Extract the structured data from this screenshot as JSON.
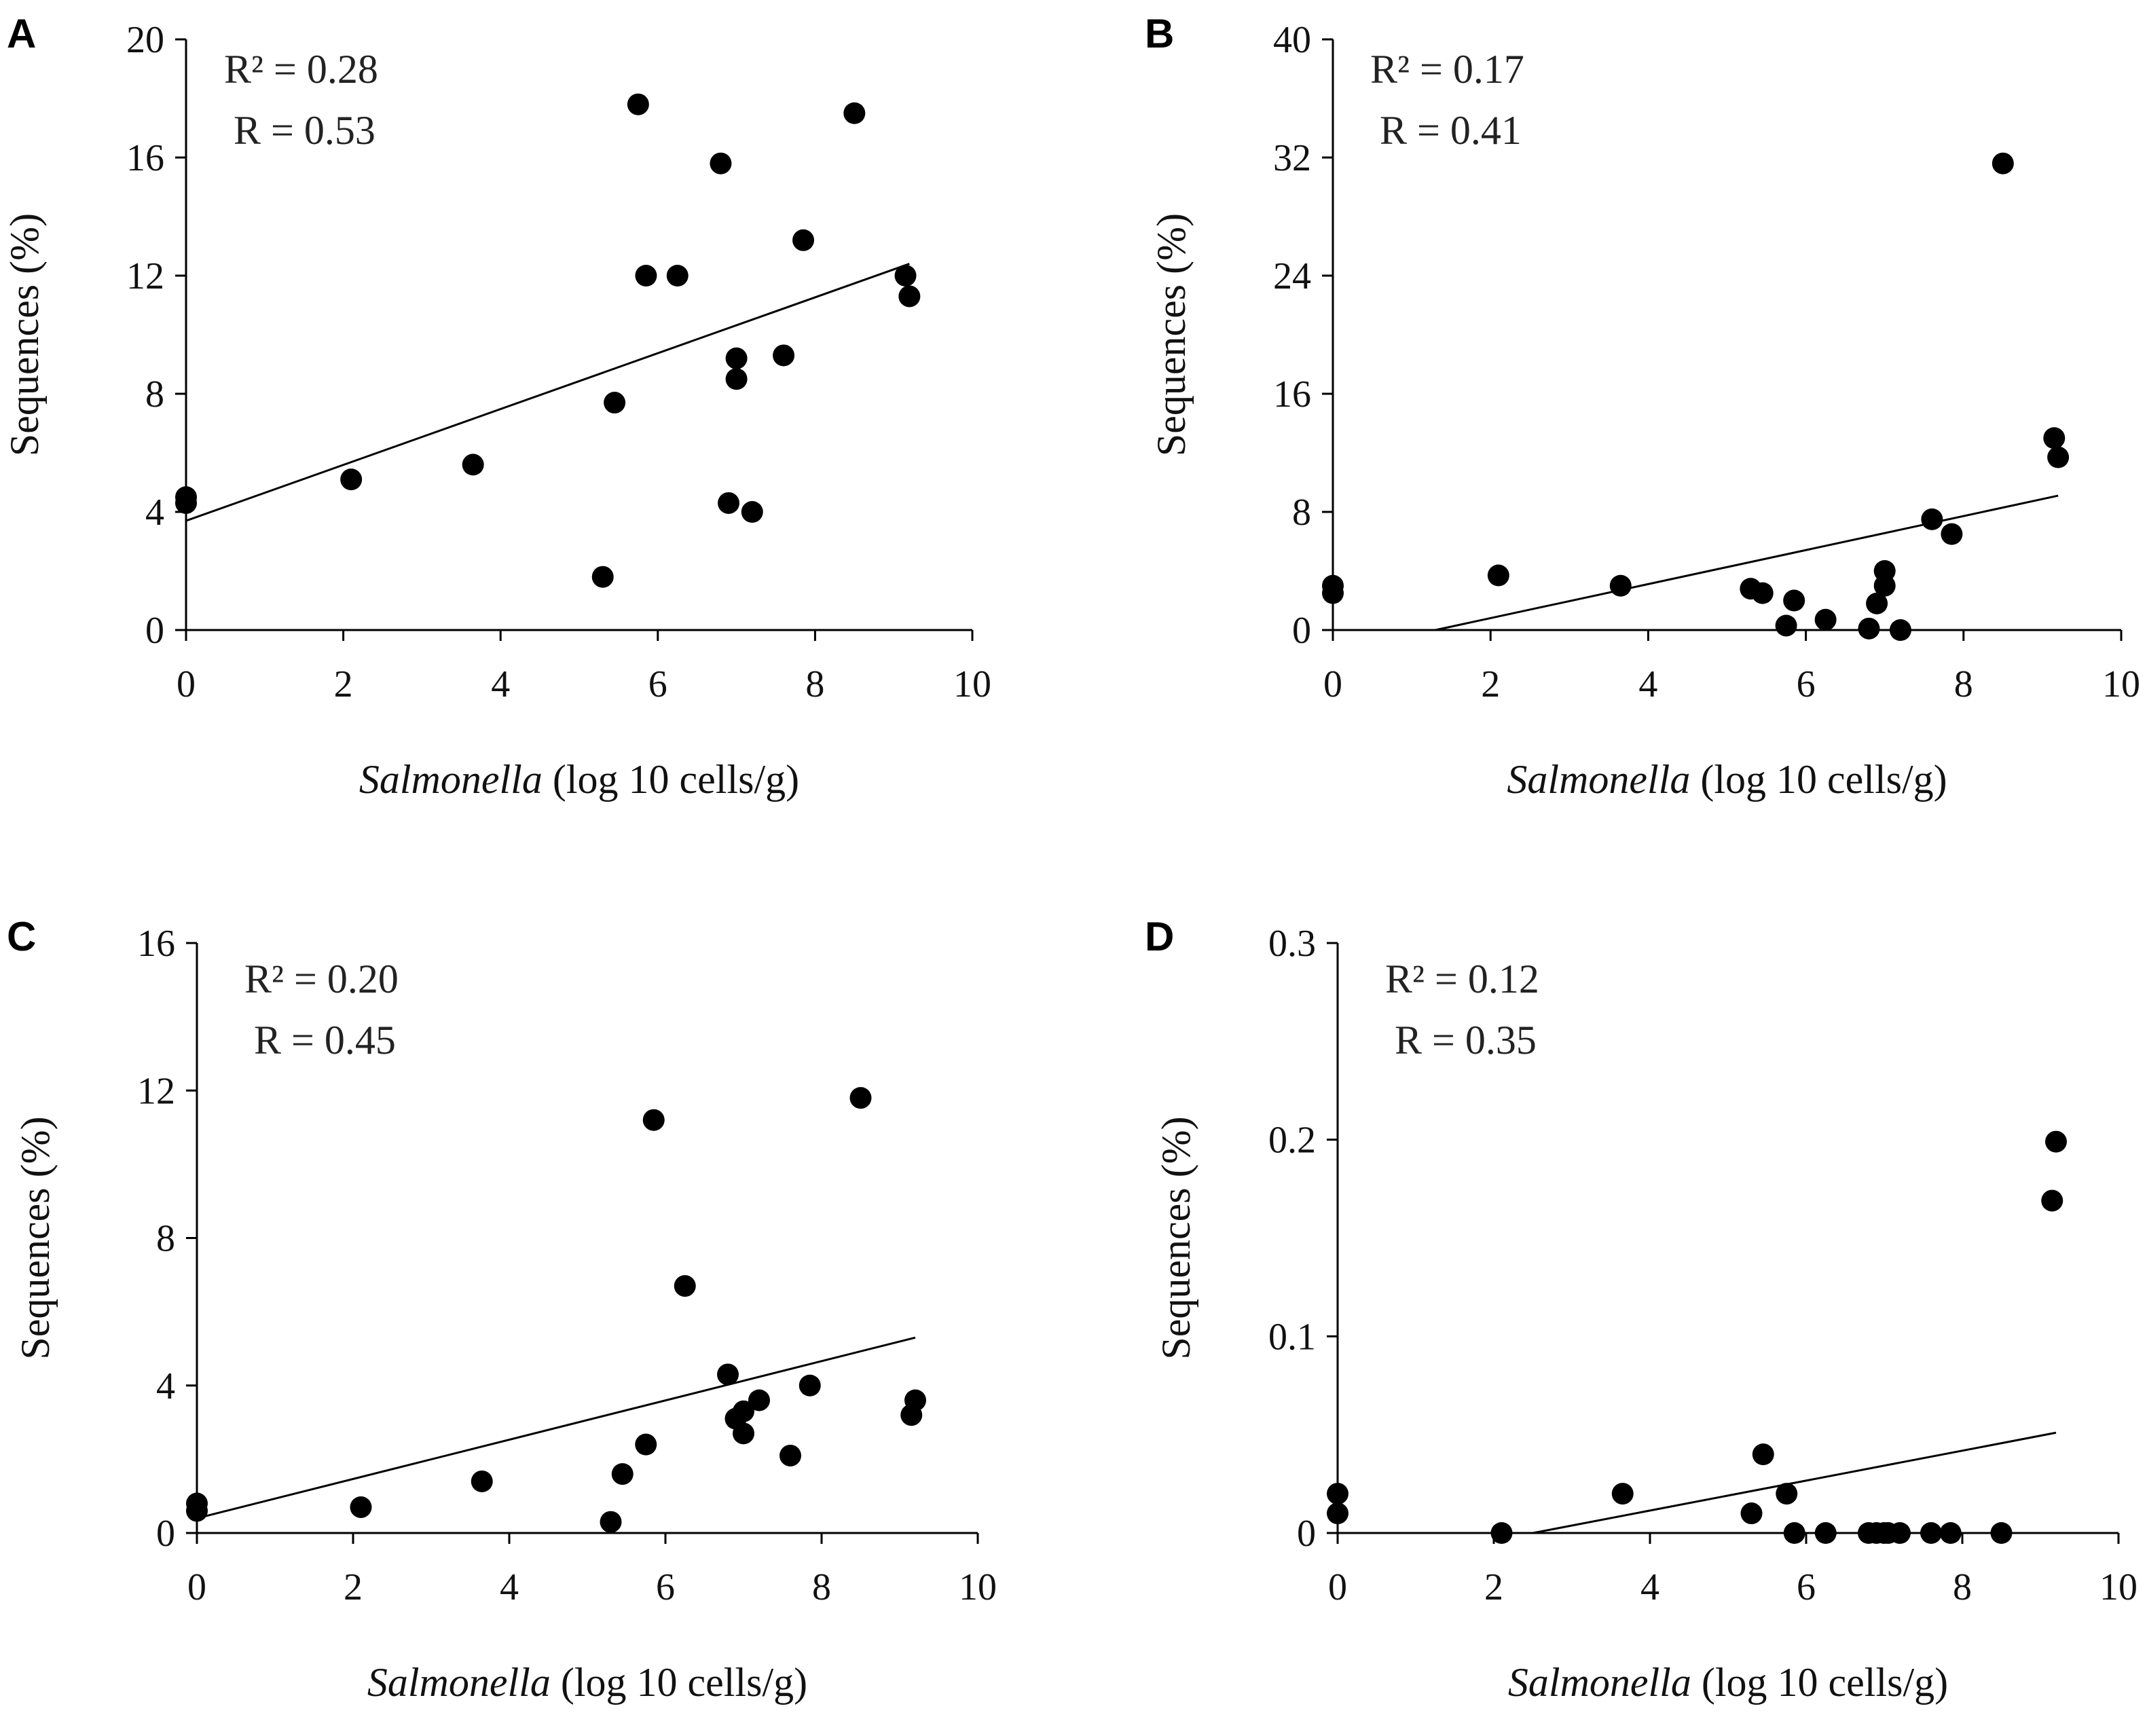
{
  "figure": {
    "xlabel_italic": "Salmonella",
    "xlabel_rest": " (log 10 cells/g)",
    "ylabel": "Sequences (%)"
  },
  "colors": {
    "points": "#000000",
    "axes": "#000000",
    "background": "#ffffff"
  },
  "chart_data": [
    {
      "panel": "A",
      "type": "scatter",
      "xlabel": "Salmonella (log 10 cells/g)",
      "ylabel": "Sequences (%)",
      "xlim": [
        0,
        10
      ],
      "ylim": [
        0,
        20
      ],
      "xticks": [
        0,
        2,
        4,
        6,
        8,
        10
      ],
      "yticks": [
        0,
        4,
        8,
        12,
        16,
        20
      ],
      "stats": {
        "r2": "R² = 0.28",
        "r": "R = 0.53"
      },
      "trendline": [
        [
          0,
          3.7
        ],
        [
          9.2,
          12.4
        ]
      ],
      "points": [
        [
          0.0,
          4.5
        ],
        [
          0.0,
          4.3
        ],
        [
          2.1,
          5.1
        ],
        [
          3.65,
          5.6
        ],
        [
          5.3,
          1.8
        ],
        [
          5.45,
          7.7
        ],
        [
          5.75,
          17.8
        ],
        [
          5.85,
          12.0
        ],
        [
          6.25,
          12.0
        ],
        [
          6.8,
          15.8
        ],
        [
          6.9,
          4.3
        ],
        [
          7.0,
          9.2
        ],
        [
          7.0,
          8.5
        ],
        [
          7.2,
          4.0
        ],
        [
          7.6,
          9.3
        ],
        [
          7.85,
          13.2
        ],
        [
          8.5,
          17.5
        ],
        [
          9.15,
          12.0
        ],
        [
          9.2,
          11.3
        ]
      ]
    },
    {
      "panel": "B",
      "type": "scatter",
      "xlabel": "Salmonella (log 10 cells/g)",
      "ylabel": "Sequences (%)",
      "xlim": [
        0,
        10
      ],
      "ylim": [
        0,
        40
      ],
      "xticks": [
        0,
        2,
        4,
        6,
        8,
        10
      ],
      "yticks": [
        0,
        8,
        16,
        24,
        32,
        40
      ],
      "stats": {
        "r2": "R² = 0.17",
        "r": "R = 0.41"
      },
      "trendline": [
        [
          1.3,
          0.0
        ],
        [
          9.2,
          9.1
        ]
      ],
      "points": [
        [
          0.0,
          3.0
        ],
        [
          0.0,
          2.5
        ],
        [
          2.1,
          3.7
        ],
        [
          3.65,
          3.0
        ],
        [
          5.3,
          2.8
        ],
        [
          5.45,
          2.5
        ],
        [
          5.75,
          0.3
        ],
        [
          5.85,
          2.0
        ],
        [
          6.25,
          0.7
        ],
        [
          6.8,
          0.1
        ],
        [
          6.9,
          1.8
        ],
        [
          7.0,
          4.0
        ],
        [
          7.0,
          3.0
        ],
        [
          7.2,
          0.0
        ],
        [
          7.6,
          7.5
        ],
        [
          7.85,
          6.5
        ],
        [
          8.5,
          31.6
        ],
        [
          9.15,
          13.0
        ],
        [
          9.2,
          11.7
        ]
      ]
    },
    {
      "panel": "C",
      "type": "scatter",
      "xlabel": "Salmonella (log 10 cells/g)",
      "ylabel": "Sequences (%)",
      "xlim": [
        0,
        10
      ],
      "ylim": [
        0,
        16
      ],
      "xticks": [
        0,
        2,
        4,
        6,
        8,
        10
      ],
      "yticks": [
        0,
        4,
        8,
        12,
        16
      ],
      "stats": {
        "r2": "R² = 0.20",
        "r": "R = 0.45"
      },
      "trendline": [
        [
          0,
          0.4
        ],
        [
          9.2,
          5.3
        ]
      ],
      "points": [
        [
          0.0,
          0.8
        ],
        [
          0.0,
          0.6
        ],
        [
          2.1,
          0.7
        ],
        [
          3.65,
          1.4
        ],
        [
          5.3,
          0.3
        ],
        [
          5.45,
          1.6
        ],
        [
          5.75,
          2.4
        ],
        [
          5.85,
          11.2
        ],
        [
          6.25,
          6.7
        ],
        [
          6.8,
          4.3
        ],
        [
          6.9,
          3.1
        ],
        [
          7.0,
          3.3
        ],
        [
          7.0,
          2.7
        ],
        [
          7.2,
          3.6
        ],
        [
          7.6,
          2.1
        ],
        [
          7.85,
          4.0
        ],
        [
          8.5,
          11.8
        ],
        [
          9.15,
          3.2
        ],
        [
          9.2,
          3.6
        ]
      ]
    },
    {
      "panel": "D",
      "type": "scatter",
      "xlabel": "Salmonella (log 10 cells/g)",
      "ylabel": "Sequences (%)",
      "xlim": [
        0,
        10
      ],
      "ylim": [
        0,
        0.3
      ],
      "xticks": [
        0,
        2,
        4,
        6,
        8,
        10
      ],
      "yticks": [
        0,
        0.1,
        0.2,
        0.3
      ],
      "stats": {
        "r2": "R² = 0.12",
        "r": "R = 0.35"
      },
      "trendline": [
        [
          2.5,
          0.0
        ],
        [
          9.2,
          0.051
        ]
      ],
      "points": [
        [
          0.0,
          0.02
        ],
        [
          0.0,
          0.01
        ],
        [
          2.1,
          0.0
        ],
        [
          3.65,
          0.02
        ],
        [
          5.3,
          0.01
        ],
        [
          5.45,
          0.04
        ],
        [
          5.75,
          0.02
        ],
        [
          5.85,
          0.0
        ],
        [
          6.25,
          0.0
        ],
        [
          6.8,
          0.0
        ],
        [
          6.9,
          0.0
        ],
        [
          7.0,
          0.0
        ],
        [
          7.05,
          0.0
        ],
        [
          7.2,
          0.0
        ],
        [
          7.6,
          0.0
        ],
        [
          7.85,
          0.0
        ],
        [
          8.5,
          0.0
        ],
        [
          9.15,
          0.169
        ],
        [
          9.2,
          0.199
        ]
      ]
    }
  ]
}
